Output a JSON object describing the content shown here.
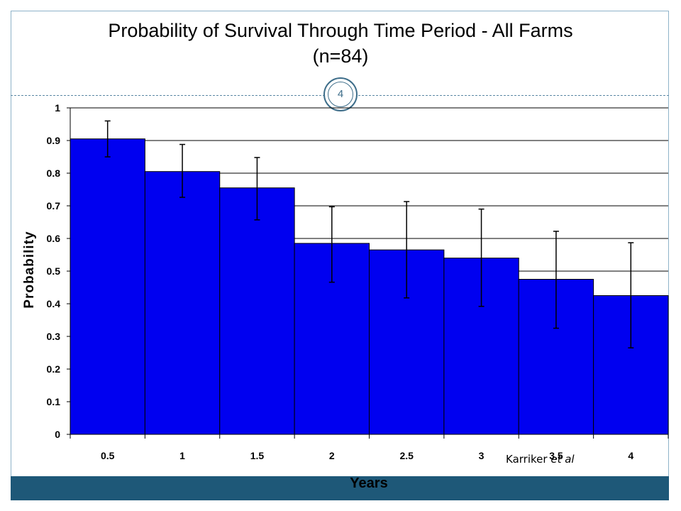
{
  "slide": {
    "title_line1": "Probability of Survival Through Time Period - All Farms",
    "title_line2": "(n=84)",
    "page_number": "4",
    "credit_author": "Karriker",
    "credit_etal": "et al",
    "colors": {
      "frame": "#8fb3c9",
      "footer": "#1e5878",
      "badge": "#3e6e8a"
    }
  },
  "chart_data": {
    "type": "bar",
    "title": "",
    "xlabel": "Years",
    "ylabel": "Probability",
    "categories": [
      "0.5",
      "1",
      "1.5",
      "2",
      "2.5",
      "3",
      "3.5",
      "4"
    ],
    "values": [
      0.905,
      0.805,
      0.755,
      0.585,
      0.565,
      0.54,
      0.475,
      0.425
    ],
    "error_upper": [
      0.96,
      0.888,
      0.848,
      0.697,
      0.713,
      0.69,
      0.622,
      0.587
    ],
    "error_lower": [
      0.85,
      0.726,
      0.657,
      0.466,
      0.418,
      0.392,
      0.325,
      0.265
    ],
    "ylim": [
      0,
      1
    ],
    "yticks": [
      "0",
      "0.1",
      "0.2",
      "0.3",
      "0.4",
      "0.5",
      "0.6",
      "0.7",
      "0.8",
      "0.9",
      "1"
    ],
    "grid": true,
    "bar_color": "#0000f0",
    "bar_edge_color": "#000000"
  }
}
